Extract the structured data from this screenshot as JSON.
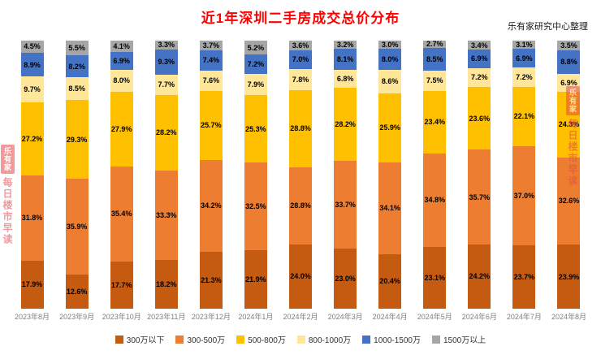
{
  "title": "近1年深圳二手房成交总价分布",
  "source": "乐有家研究中心整理",
  "watermark": {
    "logo": "乐有家",
    "text": "每日楼市早读"
  },
  "chart_data": {
    "type": "bar",
    "stacked": true,
    "unit": "%",
    "grid": false,
    "legend_position": "bottom",
    "categories": [
      "2023年8月",
      "2023年9月",
      "2023年10月",
      "2023年11月",
      "2023年12月",
      "2024年1月",
      "2024年2月",
      "2024年3月",
      "2024年4月",
      "2024年5月",
      "2024年6月",
      "2024年7月",
      "2024年8月"
    ],
    "series": [
      {
        "name": "300万以下",
        "color": "#C55A11",
        "values": [
          17.9,
          12.6,
          17.7,
          18.2,
          21.3,
          21.9,
          24.0,
          23.0,
          20.4,
          23.1,
          24.2,
          23.7,
          23.9
        ]
      },
      {
        "name": "300-500万",
        "color": "#ED7D31",
        "values": [
          31.8,
          35.9,
          35.4,
          33.3,
          34.2,
          32.5,
          28.8,
          33.7,
          34.1,
          34.8,
          35.7,
          37.0,
          32.6
        ]
      },
      {
        "name": "500-800万",
        "color": "#FFC000",
        "values": [
          27.2,
          29.3,
          27.9,
          28.2,
          25.7,
          25.3,
          28.8,
          28.2,
          25.9,
          23.4,
          23.6,
          22.1,
          24.3
        ]
      },
      {
        "name": "800-1000万",
        "color": "#FFE699",
        "values": [
          9.7,
          8.5,
          8.0,
          7.7,
          7.6,
          7.9,
          7.8,
          6.8,
          8.6,
          7.5,
          7.2,
          7.2,
          6.9
        ]
      },
      {
        "name": "1000-1500万",
        "color": "#4472C4",
        "values": [
          8.9,
          8.2,
          6.9,
          9.3,
          7.4,
          7.2,
          7.0,
          8.1,
          8.0,
          8.5,
          6.9,
          6.9,
          8.8
        ]
      },
      {
        "name": "1500万以上",
        "color": "#A6A6A6",
        "values": [
          4.5,
          5.5,
          4.1,
          3.3,
          3.7,
          5.2,
          3.6,
          3.2,
          3.0,
          2.7,
          3.4,
          3.1,
          3.5
        ]
      }
    ]
  }
}
